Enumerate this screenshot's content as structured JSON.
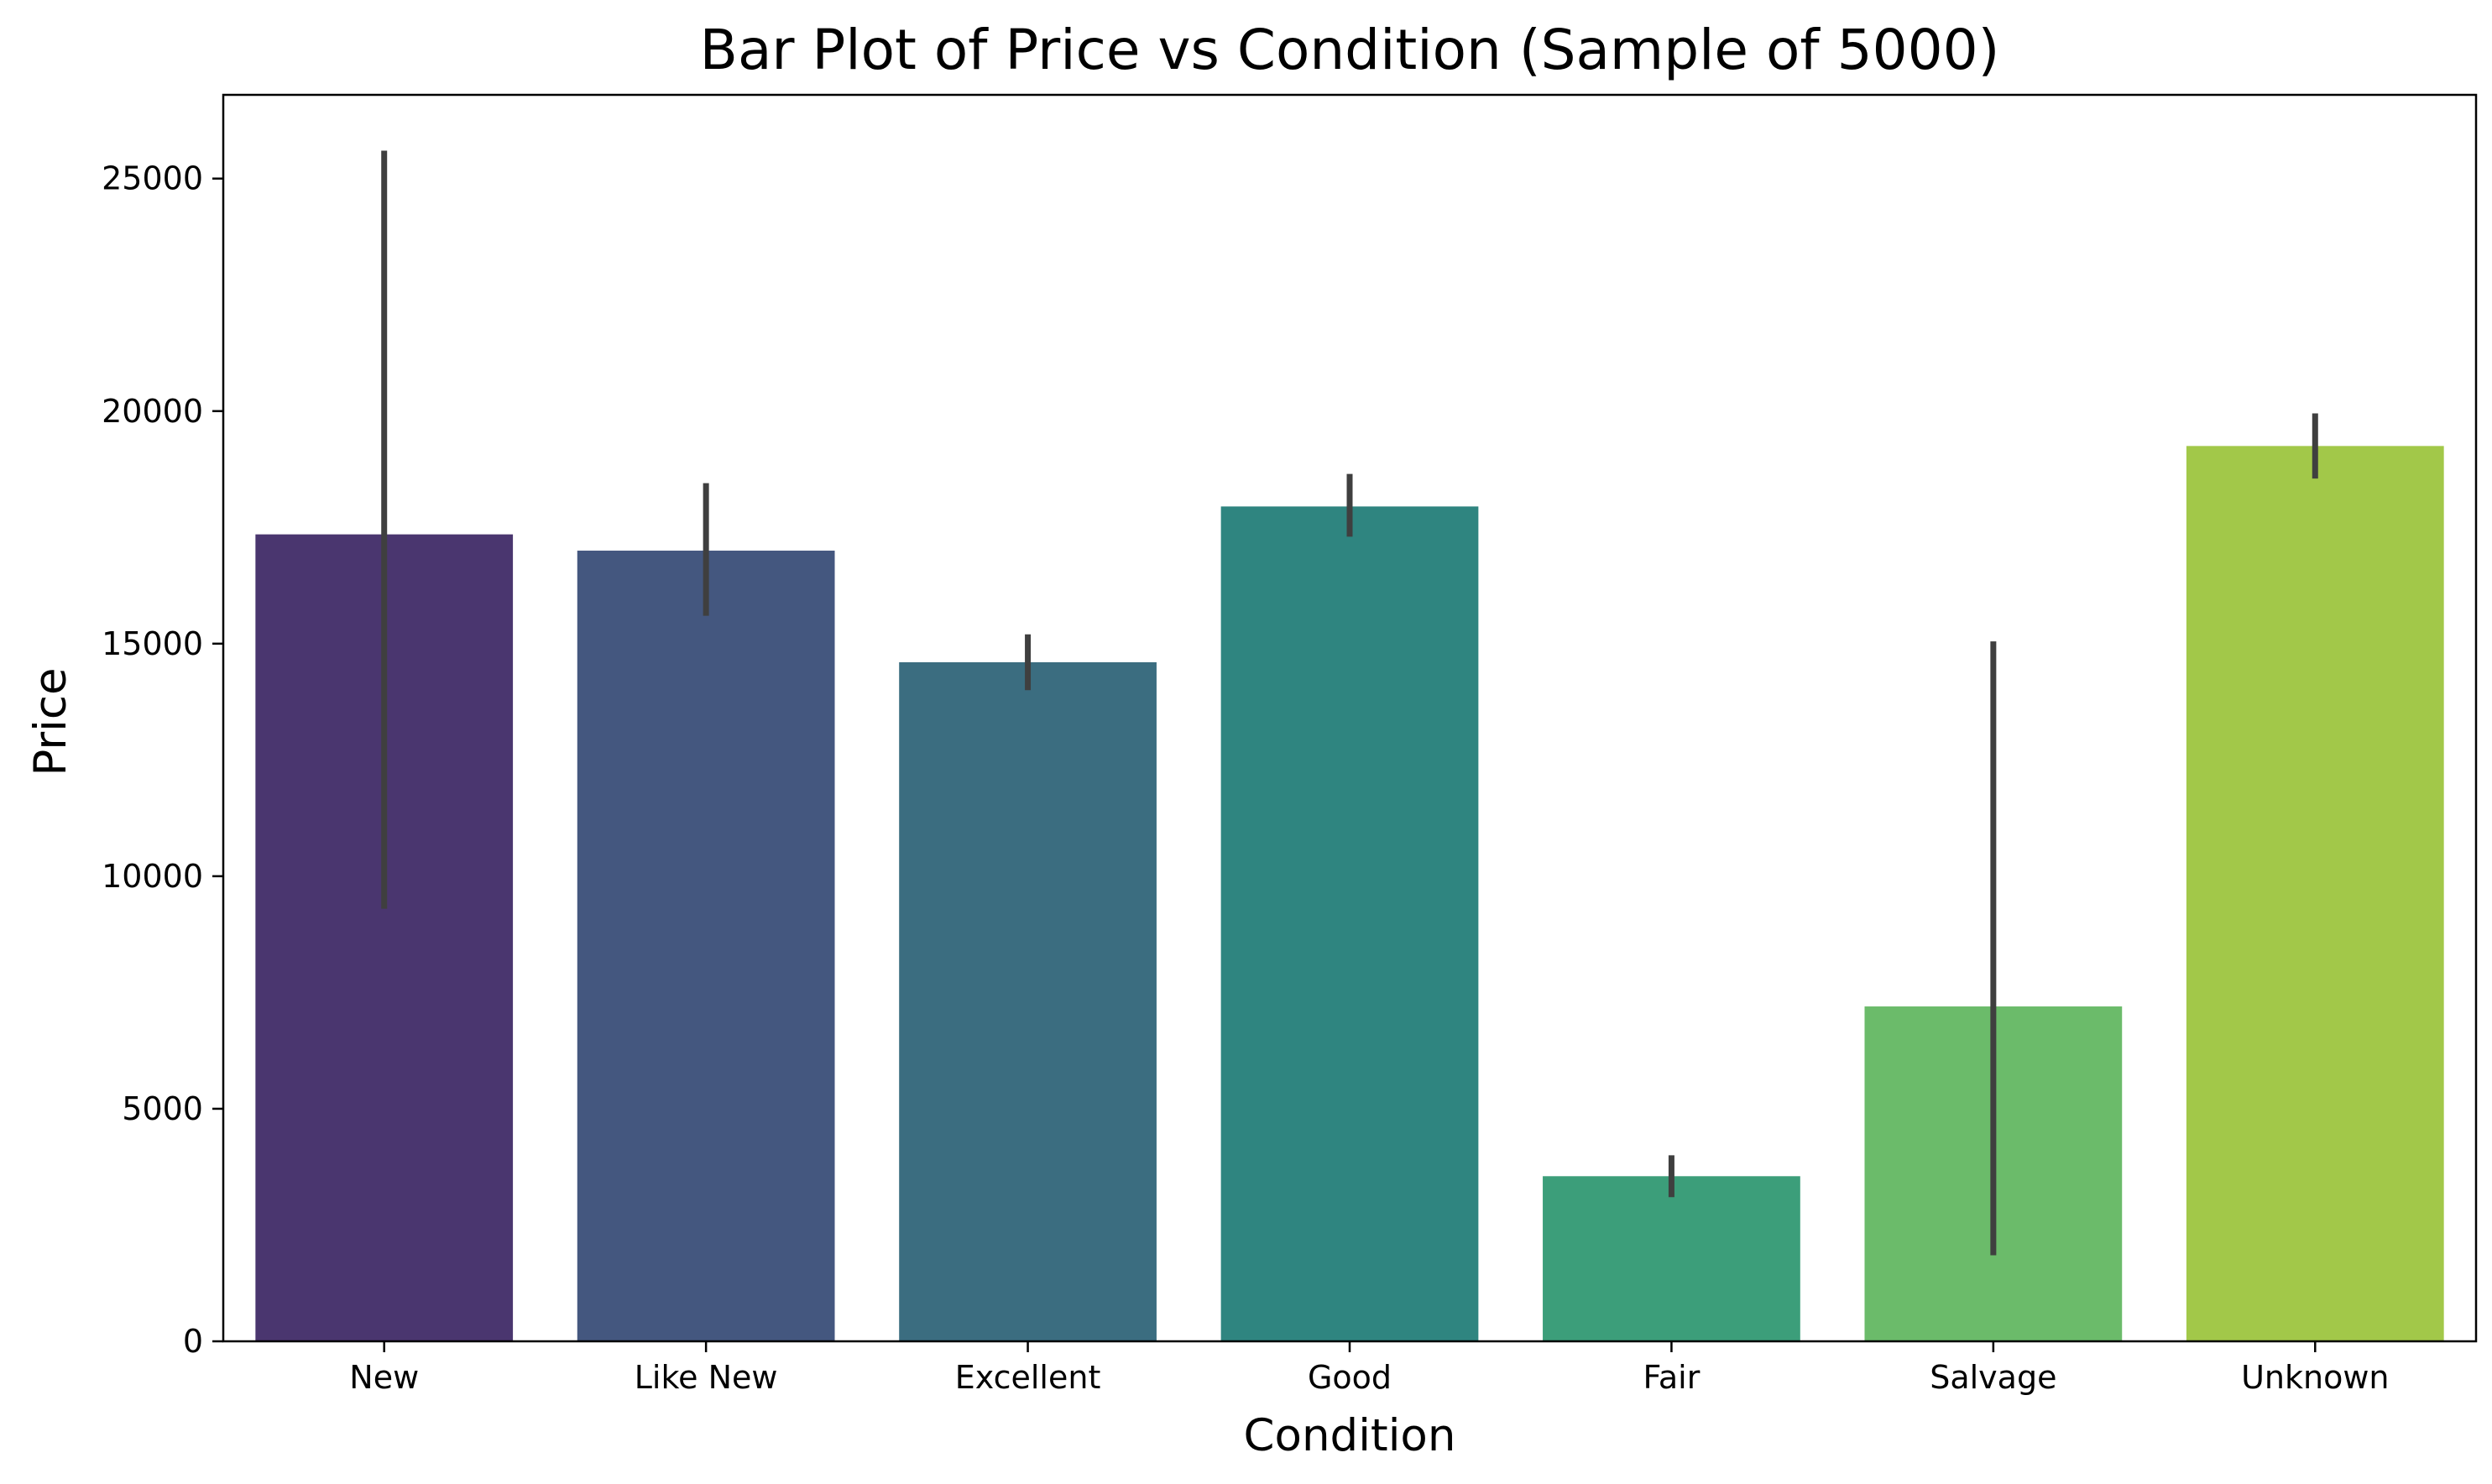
{
  "chart_data": {
    "type": "bar",
    "title": "Bar Plot of Price vs Condition (Sample of 5000)",
    "xlabel": "Condition",
    "ylabel": "Price",
    "categories": [
      "New",
      "Like New",
      "Excellent",
      "Good",
      "Fair",
      "Salvage",
      "Unknown"
    ],
    "values": [
      17350,
      17000,
      14600,
      17950,
      3550,
      7200,
      19250
    ],
    "error_bars": [
      [
        9300,
        25600
      ],
      [
        15600,
        18450
      ],
      [
        14000,
        15200
      ],
      [
        17300,
        18650
      ],
      [
        3100,
        4000
      ],
      [
        1850,
        15050
      ],
      [
        18550,
        19950
      ]
    ],
    "yticks": [
      0,
      5000,
      10000,
      15000,
      20000,
      25000
    ],
    "ylim": [
      0,
      26800
    ],
    "grid": false,
    "legend": "none",
    "colors": [
      "#4a366f",
      "#44577f",
      "#3b6d80",
      "#2f8580",
      "#3c9e7a",
      "#6bbb6a",
      "#a2c849"
    ],
    "error_bar_color": "#3f3f3f"
  }
}
